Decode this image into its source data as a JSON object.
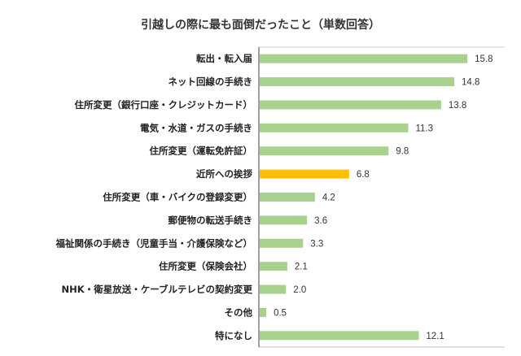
{
  "chart_data": {
    "type": "bar",
    "orientation": "horizontal",
    "title": "引越しの際に最も面倒だったこと（単数回答）",
    "categories": [
      "転出・転入届",
      "ネット回線の手続き",
      "住所変更（銀行口座・クレジットカード）",
      "電気・水道・ガスの手続き",
      "住所変更（運転免許証）",
      "近所への挨拶",
      "住所変更（車・バイクの登録変更）",
      "郵便物の転送手続き",
      "福祉関係の手続き（児童手当・介護保険など）",
      "住所変更（保険会社）",
      "NHK・衛星放送・ケーブルテレビの契約変更",
      "その他",
      "特になし"
    ],
    "values": [
      15.8,
      14.8,
      13.8,
      11.3,
      9.8,
      6.8,
      4.2,
      3.6,
      3.3,
      2.1,
      2.0,
      0.5,
      12.1
    ],
    "data_labels": [
      "15.8",
      "14.8",
      "13.8",
      "11.3",
      "9.8",
      "6.8",
      "4.2",
      "3.6",
      "3.3",
      "2.1",
      "2.0",
      "0.5",
      "12.1"
    ],
    "highlight_index": 5,
    "colors": {
      "default": "#a9d18e",
      "highlight": "#ffc000",
      "axis": "#808080"
    },
    "xlim": [
      0,
      18.7
    ],
    "grid": false,
    "legend": "none"
  }
}
